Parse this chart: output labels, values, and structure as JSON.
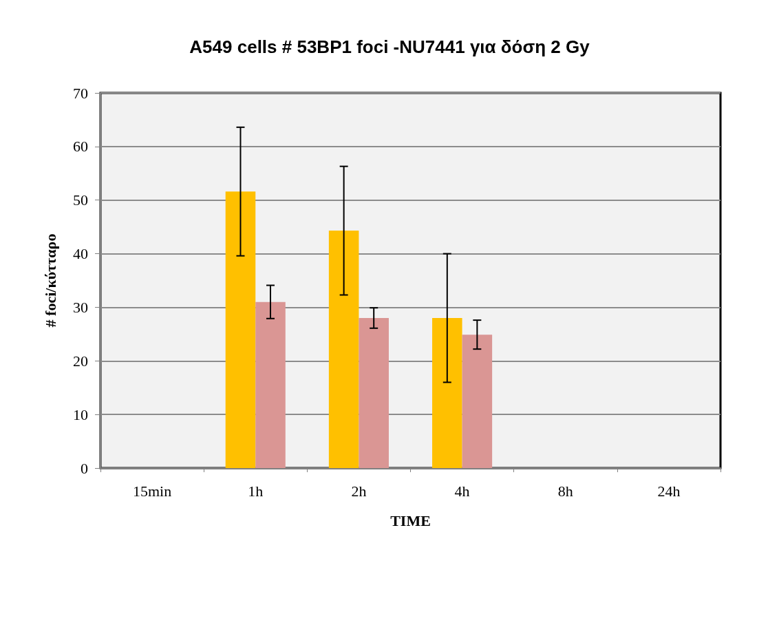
{
  "chart_data": {
    "type": "bar",
    "title": "A549 cells # 53BP1 foci -NU7441 για δόση 2 Gy",
    "xlabel": "TIME",
    "ylabel": "# foci/κύτταρο",
    "categories": [
      "15min",
      "1h",
      "2h",
      "4h",
      "8h",
      "24h"
    ],
    "series": [
      {
        "color": "#ffc000",
        "values": [
          null,
          51.6,
          44.3,
          28.0,
          null,
          null
        ],
        "errors": [
          null,
          12,
          12,
          12,
          null,
          null
        ]
      },
      {
        "color": "#da9694",
        "values": [
          null,
          31.0,
          28.0,
          24.9,
          null,
          null
        ],
        "errors": [
          null,
          3.1,
          1.9,
          2.7,
          null,
          null
        ]
      }
    ],
    "ylim": [
      0,
      70
    ],
    "yticks": [
      0,
      10,
      20,
      30,
      40,
      50,
      60,
      70
    ],
    "grid": "y"
  }
}
